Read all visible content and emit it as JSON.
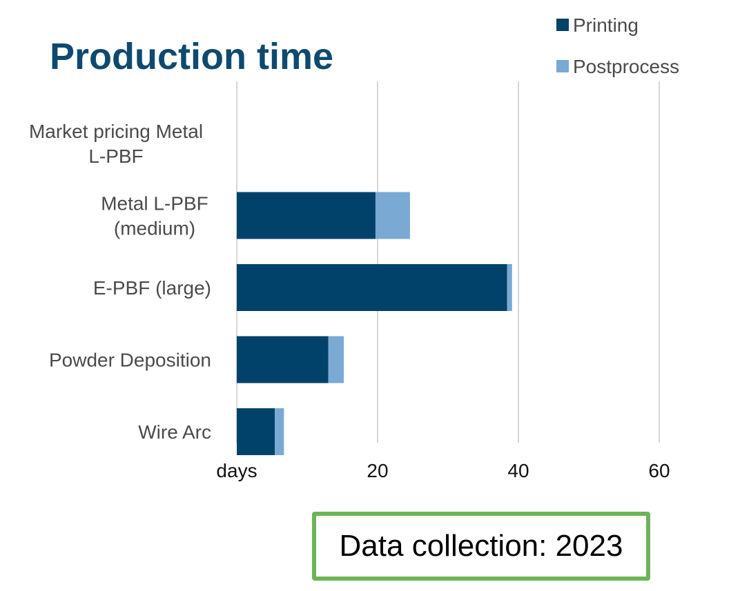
{
  "chart_data": {
    "type": "bar",
    "orientation": "horizontal",
    "stacked": true,
    "title": "Production time",
    "categories": [
      "Market pricing Metal L-PBF",
      "Metal L-PBF (medium)",
      "E-PBF (large)",
      "Powder Deposition",
      "Wire Arc"
    ],
    "category_lines": [
      [
        "Market pricing Metal",
        "L-PBF"
      ],
      [
        "Metal L-PBF",
        "(medium)"
      ],
      [
        "E-PBF (large)"
      ],
      [
        "Powder Deposition"
      ],
      [
        "Wire Arc"
      ]
    ],
    "series": [
      {
        "name": "Printing",
        "color": "#00426a",
        "values": [
          0,
          19.7,
          38.4,
          13.0,
          5.4
        ]
      },
      {
        "name": "Postprocess",
        "color": "#7aa9d4",
        "values": [
          0,
          4.9,
          0.7,
          2.2,
          1.3
        ]
      }
    ],
    "xlim": [
      0,
      60
    ],
    "x_ticks": [
      {
        "value": 0,
        "label": "days"
      },
      {
        "value": 20,
        "label": "20"
      },
      {
        "value": 40,
        "label": "40"
      },
      {
        "value": 60,
        "label": "60"
      }
    ],
    "xlabel": "",
    "ylabel": "",
    "grid": "vertical",
    "legend_position": "top-right"
  },
  "note": {
    "text": "Data collection: 2023",
    "border_color": "#6ab556"
  }
}
